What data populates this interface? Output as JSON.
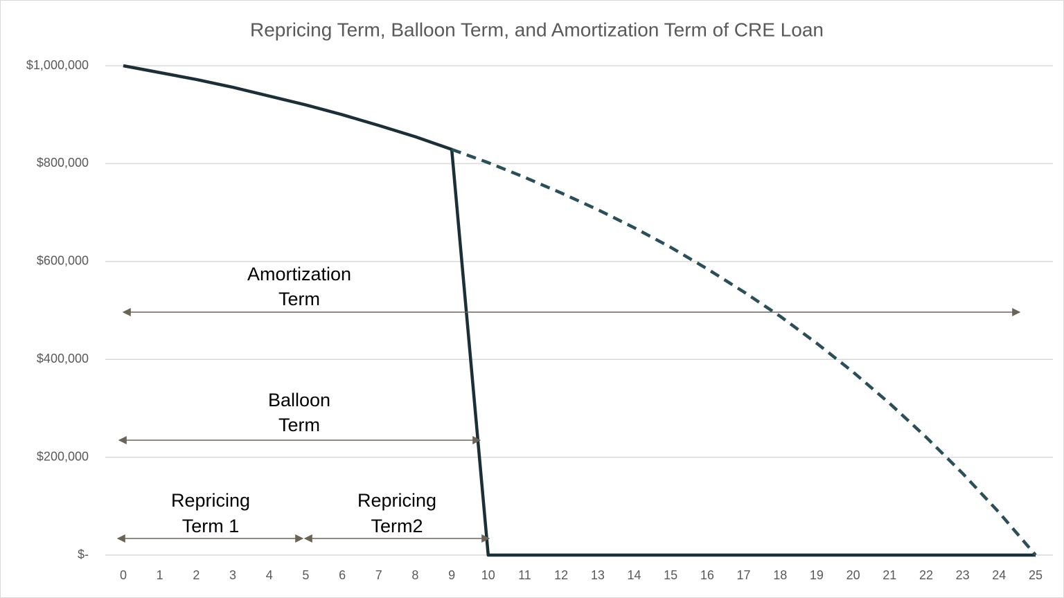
{
  "chart_data": {
    "type": "line",
    "title": "Repricing Term, Balloon Term, and Amortization Term of CRE Loan",
    "x": [
      0,
      1,
      2,
      3,
      4,
      5,
      6,
      7,
      8,
      9,
      10,
      11,
      12,
      13,
      14,
      15,
      16,
      17,
      18,
      19,
      20,
      21,
      22,
      23,
      24,
      25
    ],
    "xlim": [
      0,
      25
    ],
    "ylim": [
      0,
      1000000
    ],
    "yticks": [
      {
        "value": 0,
        "label": "$-"
      },
      {
        "value": 200000,
        "label": "$200,000"
      },
      {
        "value": 400000,
        "label": "$400,000"
      },
      {
        "value": 600000,
        "label": "$600,000"
      },
      {
        "value": 800000,
        "label": "$800,000"
      },
      {
        "value": 1000000,
        "label": "$1,000,000"
      }
    ],
    "grid": true,
    "series": [
      {
        "color": "#1b2f38",
        "dashed": false,
        "values": [
          1000000,
          986000,
          972000,
          956000,
          938000,
          920000,
          900000,
          878000,
          855000,
          829000,
          0,
          0,
          0,
          0,
          0,
          0,
          0,
          0,
          0,
          0,
          0,
          0,
          0,
          0,
          0,
          0
        ]
      },
      {
        "color": "#2a4f5a",
        "dashed": true,
        "values": [
          null,
          null,
          null,
          null,
          null,
          null,
          null,
          null,
          null,
          829000,
          802000,
          772000,
          740000,
          706000,
          669000,
          629000,
          585000,
          538000,
          488000,
          433000,
          374000,
          310000,
          241000,
          167000,
          87000,
          0
        ]
      }
    ],
    "annotations": [
      {
        "lines": [
          "Amortization",
          "Term"
        ]
      },
      {
        "lines": [
          "Balloon",
          "Term"
        ]
      },
      {
        "lines": [
          "Repricing",
          "Term 1"
        ]
      },
      {
        "lines": [
          "Repricing",
          "Term2"
        ]
      }
    ]
  }
}
